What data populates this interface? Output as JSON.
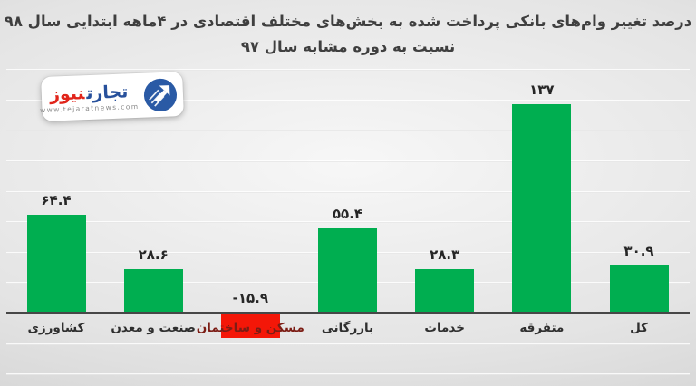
{
  "title": {
    "line1": "درصد تغییر وام‌های بانکی پرداخت شده به بخش‌های مختلف اقتصادی در ۴ماهه ابتدایی سال ۹۸",
    "line2": "نسبت به دوره مشابه سال ۹۷"
  },
  "logo": {
    "word_blue": "تجارت",
    "word_red": "نیوز",
    "url": "www.tejaratnews.com"
  },
  "colors": {
    "positive_bar": "#00ae50",
    "negative_bar": "#f41708",
    "axis": "#474747",
    "title_text": "#3f3f3f",
    "category_text": "#2f2f2f",
    "negative_category_text": "#7c1d15",
    "logo_blue": "#27509b",
    "logo_red": "#e1251b"
  },
  "chart_data": {
    "type": "bar",
    "title": "درصد تغییر وام‌های بانکی پرداخت شده به بخش‌های مختلف اقتصادی در ۴ماهه ابتدایی سال ۹۸ نسبت به دوره مشابه سال ۹۷",
    "xlabel": "",
    "ylabel": "",
    "legend": "none",
    "grid": "on",
    "grid_step": 20,
    "ylim": [
      -40,
      160
    ],
    "categories": [
      "کشاورزی",
      "صنعت و معدن",
      "مسکن و ساختمان",
      "بازرگانی",
      "خدمات",
      "متفرقه",
      "کل"
    ],
    "values": [
      64.4,
      28.6,
      -15.9,
      55.4,
      28.3,
      137,
      30.9
    ],
    "value_labels": [
      "۶۴.۴",
      "۲۸.۶",
      "-۱۵.۹",
      "۵۵.۴",
      "۲۸.۳",
      "۱۳۷",
      "۳۰.۹"
    ],
    "bar_colors": [
      "#00ae50",
      "#00ae50",
      "#f41708",
      "#00ae50",
      "#00ae50",
      "#00ae50",
      "#00ae50"
    ],
    "category_label_colors": [
      "#2f2f2f",
      "#2f2f2f",
      "#7c1d15",
      "#2f2f2f",
      "#2f2f2f",
      "#2f2f2f",
      "#2f2f2f"
    ]
  }
}
